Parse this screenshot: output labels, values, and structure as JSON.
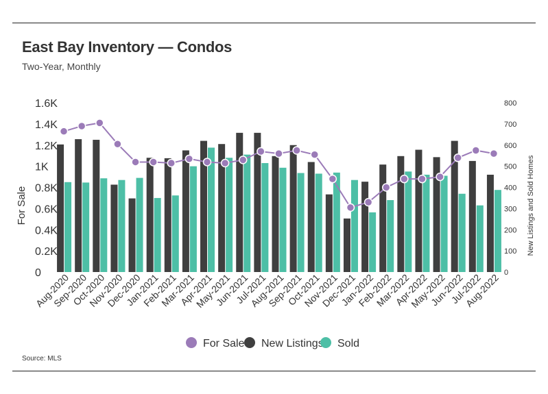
{
  "header": {
    "title": "East Bay Inventory — Condos",
    "subtitle": "Two-Year, Monthly"
  },
  "footer": {
    "source": "Source:  MLS"
  },
  "chart_data": {
    "type": "bar",
    "categories": [
      "Aug-2020",
      "Sep-2020",
      "Oct-2020",
      "Nov-2020",
      "Dec-2020",
      "Jan-2021",
      "Feb-2021",
      "Mar-2021",
      "Apr-2021",
      "May-2021",
      "Jun-2021",
      "Jul-2021",
      "Aug-2021",
      "Sep-2021",
      "Oct-2021",
      "Nov-2021",
      "Dec-2021",
      "Jan-2022",
      "Feb-2022",
      "Mar-2022",
      "Apr-2022",
      "May-2022",
      "Jun-2022",
      "Jul-2022",
      "Aug-2022"
    ],
    "series": [
      {
        "name": "For Sale",
        "type": "line",
        "axis": "left",
        "color": "#9b7bb8",
        "values": [
          1330,
          1380,
          1410,
          1210,
          1040,
          1040,
          1030,
          1070,
          1040,
          1030,
          1060,
          1140,
          1120,
          1150,
          1110,
          880,
          610,
          660,
          800,
          880,
          880,
          900,
          1080,
          1150,
          1120
        ]
      },
      {
        "name": "New Listings",
        "type": "bar",
        "axis": "right",
        "color": "#3f3f3f",
        "values": [
          603,
          628,
          625,
          413,
          348,
          540,
          538,
          575,
          620,
          605,
          658,
          658,
          548,
          600,
          520,
          367,
          253,
          427,
          508,
          548,
          578,
          543,
          620,
          525,
          460
        ]
      },
      {
        "name": "Sold",
        "type": "bar",
        "axis": "right",
        "color": "#4dbfa6",
        "values": [
          425,
          423,
          443,
          435,
          445,
          350,
          362,
          500,
          588,
          540,
          555,
          515,
          493,
          468,
          465,
          470,
          435,
          282,
          340,
          475,
          460,
          455,
          370,
          315,
          388
        ]
      }
    ],
    "y_left": {
      "label": "For Sale",
      "ticks": [
        "1.6K",
        "1.4K",
        "1.2K",
        "1K",
        "0.8K",
        "0.6K",
        "0.4K",
        "0.2K",
        "0"
      ],
      "range": [
        0,
        1600
      ]
    },
    "y_right": {
      "label": "New Listings and Sold Homes",
      "ticks": [
        "800",
        "700",
        "600",
        "500",
        "400",
        "300",
        "200",
        "100",
        "0"
      ],
      "range": [
        0,
        800
      ]
    },
    "legend": {
      "position": "bottom",
      "items": [
        "For Sale",
        "New Listings",
        "Sold"
      ]
    },
    "grid": false
  }
}
